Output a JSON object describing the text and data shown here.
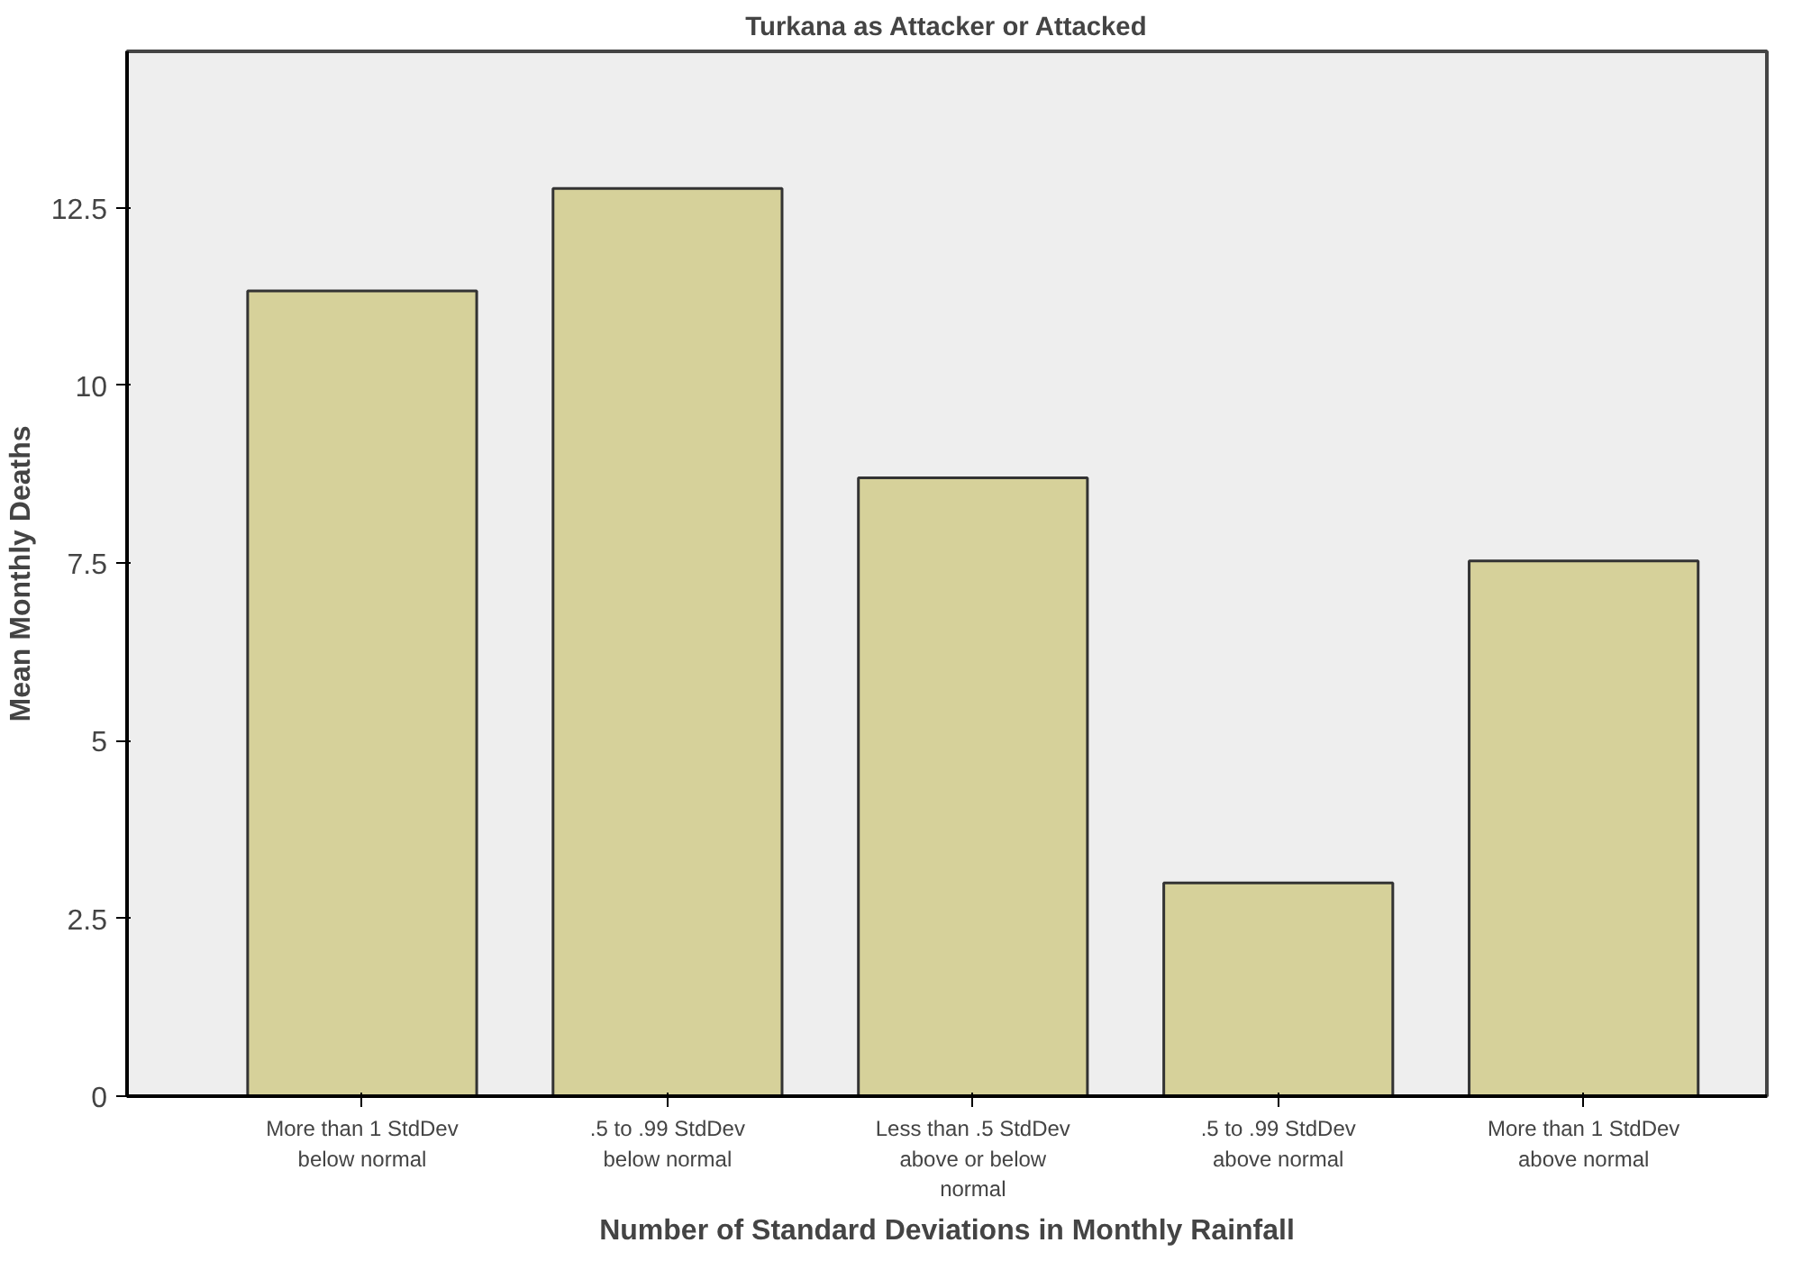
{
  "chart_data": {
    "type": "bar",
    "title": "Turkana as Attacker or Attacked",
    "xlabel": "Number of Standard Deviations in Monthly Rainfall",
    "ylabel": "Mean Monthly Deaths",
    "categories": [
      "More than 1 StdDev below normal",
      ".5 to .99 StdDev below normal",
      "Less than .5 StdDev above or below normal",
      ".5 to .99 StdDev above normal",
      "More than 1 StdDev above normal"
    ],
    "values": [
      11.33,
      12.77,
      8.7,
      3.0,
      7.53
    ],
    "color": "#d6d19a",
    "ylim": [
      0,
      14.7
    ],
    "yticks": [
      0,
      {
        "value": 2.5,
        "label": "2.5"
      },
      5,
      {
        "value": 7.5,
        "label": "7.5"
      },
      10,
      {
        "value": 12.5,
        "label": "12.5"
      }
    ],
    "grid": false
  }
}
